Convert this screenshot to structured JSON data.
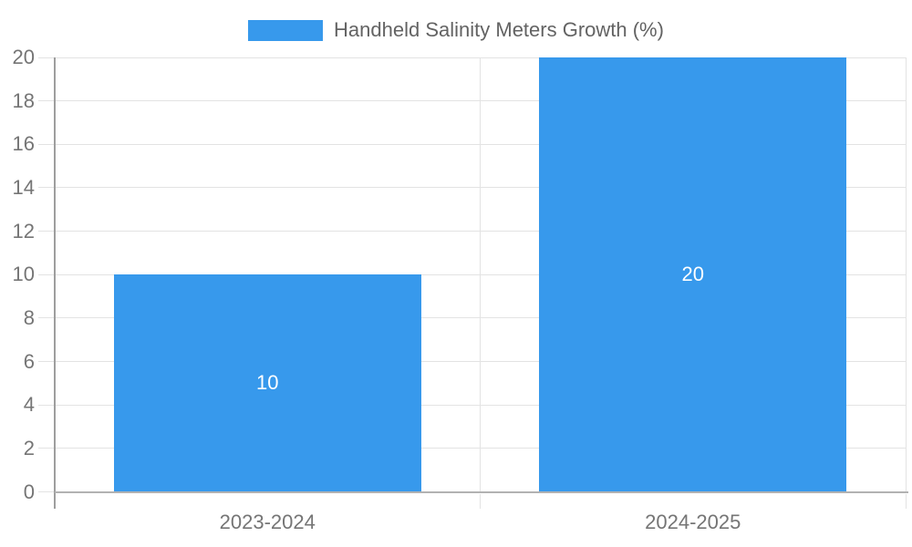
{
  "chart_data": {
    "type": "bar",
    "title": "Handheld Salinity Meters Growth (%)",
    "categories": [
      "2023-2024",
      "2024-2025"
    ],
    "series": [
      {
        "name": "Handheld Salinity Meters Growth (%)",
        "values": [
          10,
          20
        ]
      }
    ],
    "values": [
      10,
      20
    ],
    "bar_value_labels": [
      "10",
      "20"
    ],
    "xlabel": "",
    "ylabel": "",
    "ylim": [
      0,
      20
    ],
    "yticks": [
      0,
      2,
      4,
      6,
      8,
      10,
      12,
      14,
      16,
      18,
      20
    ],
    "grid": true,
    "legend_position": "top-center",
    "colors": {
      "bar": "#3799ec",
      "grid": "#e3e3e3",
      "axis_line": "#9e9e9e",
      "baseline": "#b2b2b2",
      "tick_text": "#757575",
      "legend_text": "#636363",
      "bar_label_text": "#ffffff",
      "background": "#ffffff"
    }
  }
}
